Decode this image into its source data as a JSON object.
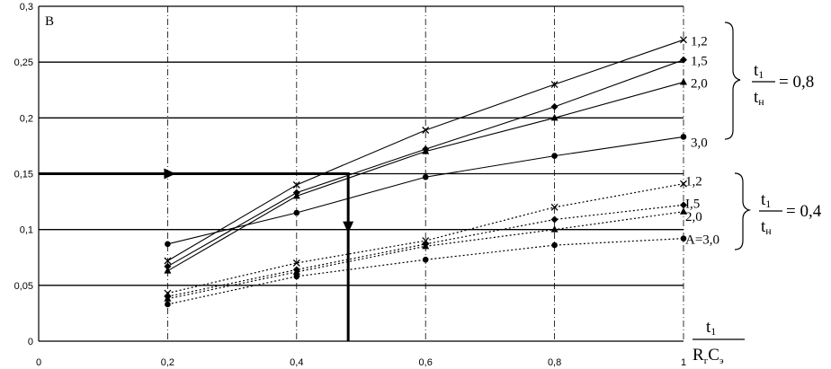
{
  "chart_data": {
    "type": "line",
    "corner_label": "B",
    "x_ticks": [
      "0",
      "0,2",
      "0,4",
      "0,6",
      "0,8",
      "1"
    ],
    "y_ticks": [
      "0",
      "0,05",
      "0,1",
      "0,15",
      "0,2",
      "0,25",
      "0,3"
    ],
    "xlim": [
      0,
      1
    ],
    "ylim": [
      0,
      0.3
    ],
    "xlabel": {
      "numerator": "t",
      "num_sub": "1",
      "denominator": "R",
      "den_sub1": "г",
      "den_mid": "C",
      "den_sub2": "э"
    },
    "groups": [
      {
        "ratio_num": "t",
        "ratio_num_sub": "1",
        "ratio_den": "t",
        "ratio_den_sub": "н",
        "ratio_value": "= 0,8",
        "line_style": "solid",
        "series": [
          {
            "name": "1,2",
            "marker": "cross",
            "x": [
              0.2,
              0.4,
              0.6,
              0.8,
              1.0
            ],
            "y": [
              0.072,
              0.14,
              0.189,
              0.23,
              0.27
            ]
          },
          {
            "name": "1,5",
            "marker": "diamond",
            "x": [
              0.2,
              0.4,
              0.6,
              0.8,
              1.0
            ],
            "y": [
              0.067,
              0.133,
              0.172,
              0.21,
              0.252
            ]
          },
          {
            "name": "2,0",
            "marker": "triangle",
            "x": [
              0.2,
              0.4,
              0.6,
              0.8,
              1.0
            ],
            "y": [
              0.063,
              0.13,
              0.17,
              0.2,
              0.232
            ]
          },
          {
            "name": "3,0",
            "marker": "dot",
            "x": [
              0.2,
              0.4,
              0.6,
              0.8,
              1.0
            ],
            "y": [
              0.087,
              0.115,
              0.147,
              0.166,
              0.183
            ]
          }
        ]
      },
      {
        "ratio_num": "t",
        "ratio_num_sub": "1",
        "ratio_den": "t",
        "ratio_den_sub": "н",
        "ratio_value": "= 0,4",
        "line_style": "dotted",
        "series": [
          {
            "name": "1,2",
            "marker": "cross",
            "x": [
              0.2,
              0.4,
              0.6,
              0.8,
              1.0
            ],
            "y": [
              0.043,
              0.07,
              0.09,
              0.12,
              0.141
            ]
          },
          {
            "name": "I,5",
            "marker": "diamond",
            "x": [
              0.2,
              0.4,
              0.6,
              0.8,
              1.0
            ],
            "y": [
              0.04,
              0.064,
              0.087,
              0.109,
              0.122
            ]
          },
          {
            "name": "2,0",
            "marker": "triangle",
            "x": [
              0.2,
              0.4,
              0.6,
              0.8,
              1.0
            ],
            "y": [
              0.038,
              0.062,
              0.085,
              0.1,
              0.116
            ]
          },
          {
            "name": "A=3,0",
            "marker": "dot",
            "x": [
              0.2,
              0.4,
              0.6,
              0.8,
              1.0
            ],
            "y": [
              0.033,
              0.058,
              0.073,
              0.086,
              0.092
            ]
          }
        ]
      }
    ],
    "guide": {
      "y": 0.15,
      "x": 0.48
    }
  }
}
